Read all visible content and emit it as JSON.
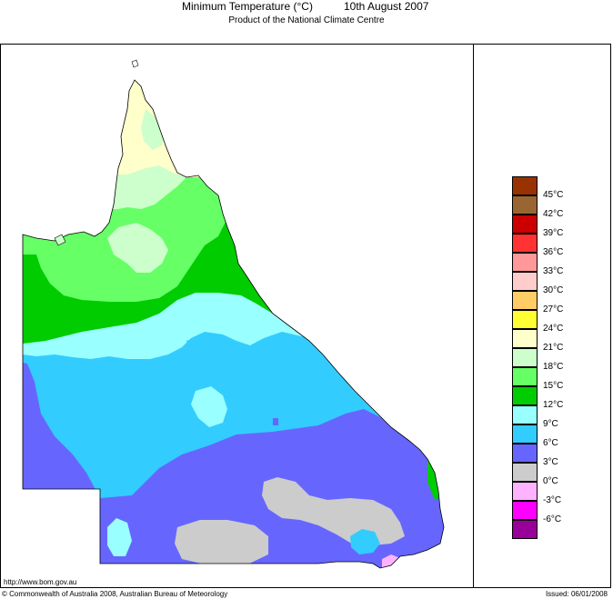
{
  "header": {
    "title": "Minimum Temperature (°C)",
    "date": "10th August 2007",
    "subtitle": "Product of the National Climate Centre"
  },
  "legend": {
    "colors": [
      "#983200",
      "#996633",
      "#cc0000",
      "#ff3333",
      "#ff9999",
      "#ffcccc",
      "#ffcc66",
      "#ffff33",
      "#ffffcc",
      "#ccffcc",
      "#66ff66",
      "#00cc00",
      "#99ffff",
      "#33ccff",
      "#6666ff",
      "#cccccc",
      "#ffb3ff",
      "#ff00ff",
      "#990099"
    ],
    "labels": [
      "45°C",
      "42°C",
      "39°C",
      "36°C",
      "33°C",
      "30°C",
      "27°C",
      "24°C",
      "21°C",
      "18°C",
      "15°C",
      "12°C",
      "9°C",
      "6°C",
      "3°C",
      "0°C",
      "-3°C",
      "-6°C"
    ]
  },
  "footer": {
    "url": "http://www.bom.gov.au",
    "copyright": "© Commonwealth of Australia 2008, Australian Bureau of Meteorology",
    "issued": "Issued: 06/01/2008"
  }
}
